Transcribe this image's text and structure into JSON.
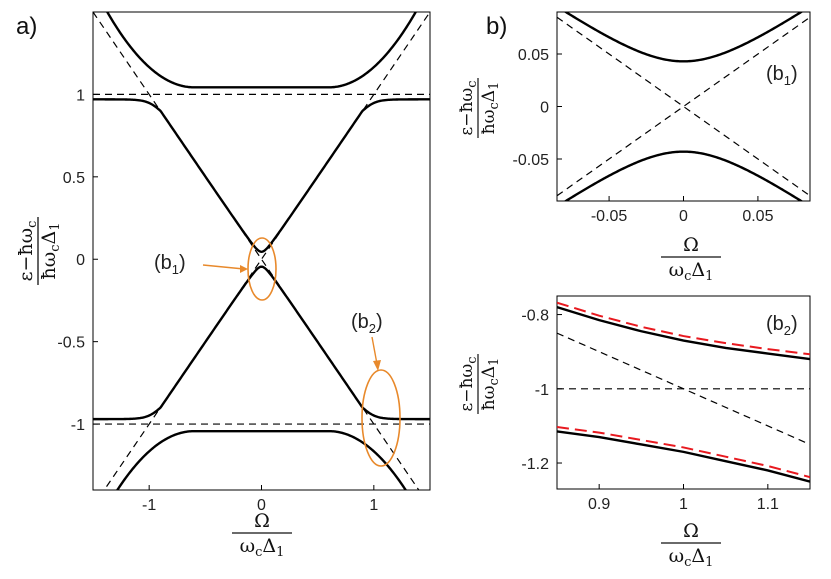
{
  "panel_labels": {
    "a": "a)",
    "b": "b)"
  },
  "axis_labels": {
    "a_y_num": "ε−ħω",
    "a_y_num_sub": "c",
    "a_y_den": "ħω",
    "a_y_den_sub1": "c",
    "a_y_den_mid": "Δ",
    "a_y_den_sub2": "1",
    "a_x_num": "Ω",
    "a_x_den": "ω",
    "a_x_den_sub1": "c",
    "a_x_den_mid": "Δ",
    "a_x_den_sub2": "1",
    "b1_y_num": "ε−ħω",
    "b1_y_num_sub": "c",
    "b1_y_den": "ħω",
    "b1_y_den_sub1": "c",
    "b1_y_den_mid": "Δ",
    "b1_y_den_sub2": "1",
    "b1_x_num": "Ω",
    "b1_x_den": "ω",
    "b1_x_den_sub1": "c",
    "b1_x_den_mid": "Δ",
    "b1_x_den_sub2": "1",
    "b2_y_num": "ε−ħω",
    "b2_y_num_sub": "c",
    "b2_y_den": "ħω",
    "b2_y_den_sub1": "c",
    "b2_y_den_mid": "Δ",
    "b2_y_den_sub2": "1",
    "b2_x_num": "Ω",
    "b2_x_den": "ω",
    "b2_x_den_sub1": "c",
    "b2_x_den_mid": "Δ",
    "b2_x_den_sub2": "1"
  },
  "annotations": {
    "b1_callout": "(b",
    "b1_callout_sub": "1",
    "b1_callout_close": ")",
    "b2_callout": "(b",
    "b2_callout_sub": "2",
    "b2_callout_close": ")",
    "b1_tag": "(b",
    "b1_tag_sub": "1",
    "b1_tag_close": ")",
    "b2_tag": "(b",
    "b2_tag_sub": "2",
    "b2_tag_close": ")",
    "highlight_color": "#e8892b"
  },
  "chart_data": [
    {
      "id": "a",
      "type": "line",
      "xlim": [
        -1.5,
        1.5
      ],
      "ylim": [
        -1.4,
        1.5
      ],
      "xticks": [
        -1,
        0,
        1
      ],
      "xtick_labels": [
        "-1",
        "0",
        "1"
      ],
      "yticks": [
        1,
        0.5,
        0,
        -0.5,
        -1
      ],
      "ytick_labels": [
        "1",
        "0.5",
        "0",
        "-0.5",
        "-1"
      ],
      "model": {
        "coupling": 0.045,
        "gap": 1,
        "dispersion_slope": 1.0
      },
      "series": [
        {
          "style": "solid",
          "color": "#000000",
          "x": [
            -1.5,
            -1.2,
            -0.8,
            -0.4,
            0,
            0.4,
            0.8,
            1.2,
            1.5
          ],
          "y": [
            1.48,
            1.21,
            1.07,
            1.045,
            1.043,
            1.045,
            1.07,
            1.21,
            1.48
          ]
        },
        {
          "style": "solid",
          "color": "#000000",
          "x": [
            -1.5,
            -1.2,
            -0.9,
            -0.6,
            -0.3,
            0,
            0.3,
            0.6,
            0.9,
            1.2,
            1.5
          ],
          "y": [
            0.97,
            0.95,
            0.84,
            0.58,
            0.3,
            0.04,
            0.3,
            0.58,
            0.84,
            0.95,
            0.97
          ]
        },
        {
          "style": "solid",
          "color": "#000000",
          "x": [
            -1.5,
            -1.2,
            -0.9,
            -0.6,
            -0.3,
            0,
            0.3,
            0.6,
            0.9,
            1.2,
            1.5
          ],
          "y": [
            -0.97,
            -0.95,
            -0.84,
            -0.58,
            -0.3,
            -0.04,
            -0.3,
            -0.58,
            -0.84,
            -0.95,
            -0.97
          ]
        },
        {
          "style": "solid",
          "color": "#000000",
          "x": [
            -1.5,
            -1.2,
            -0.8,
            -0.4,
            0,
            0.4,
            0.8,
            1.2,
            1.5
          ],
          "y": [
            -1.48,
            -1.21,
            -1.07,
            -1.045,
            -1.043,
            -1.045,
            -1.07,
            -1.21,
            -1.48
          ]
        },
        {
          "style": "dashed",
          "color": "#000000",
          "x": [
            -1.5,
            1.5
          ],
          "y": [
            1,
            1
          ]
        },
        {
          "style": "dashed",
          "color": "#000000",
          "x": [
            -1.5,
            1.5
          ],
          "y": [
            -1,
            -1
          ]
        },
        {
          "style": "dashed",
          "color": "#000000",
          "x": [
            -1.5,
            1.5
          ],
          "y": [
            1.5,
            -1.5
          ]
        },
        {
          "style": "dashed",
          "color": "#000000",
          "x": [
            -1.5,
            1.5
          ],
          "y": [
            -1.5,
            1.5
          ]
        }
      ]
    },
    {
      "id": "b1",
      "type": "line",
      "xlim": [
        -0.085,
        0.085
      ],
      "ylim": [
        -0.09,
        0.09
      ],
      "xticks": [
        -0.05,
        0,
        0.05
      ],
      "xtick_labels": [
        "-0.05",
        "0",
        "0.05"
      ],
      "yticks": [
        0.05,
        0,
        -0.05
      ],
      "ytick_labels": [
        "0.05",
        "0",
        "-0.05"
      ],
      "model": {
        "coupling": 0.043
      },
      "series": [
        {
          "style": "solid",
          "color": "#000000",
          "x": [
            -0.085,
            -0.05,
            -0.025,
            0,
            0.025,
            0.05,
            0.085
          ],
          "y": [
            0.095,
            0.066,
            0.05,
            0.043,
            0.05,
            0.066,
            0.095
          ]
        },
        {
          "style": "solid",
          "color": "#000000",
          "x": [
            -0.085,
            -0.05,
            -0.025,
            0,
            0.025,
            0.05,
            0.085
          ],
          "y": [
            -0.095,
            -0.066,
            -0.05,
            -0.043,
            -0.05,
            -0.066,
            -0.095
          ]
        },
        {
          "style": "dashed",
          "color": "#000000",
          "x": [
            -0.085,
            0.085
          ],
          "y": [
            0.085,
            -0.085
          ]
        },
        {
          "style": "dashed",
          "color": "#000000",
          "x": [
            -0.085,
            0.085
          ],
          "y": [
            -0.085,
            0.085
          ]
        }
      ]
    },
    {
      "id": "b2",
      "type": "line",
      "xlim": [
        0.85,
        1.15
      ],
      "ylim": [
        -1.27,
        -0.75
      ],
      "xticks": [
        0.9,
        1,
        1.1
      ],
      "xtick_labels": [
        "0.9",
        "1",
        "1.1"
      ],
      "yticks": [
        -0.8,
        -1,
        -1.2
      ],
      "ytick_labels": [
        "-0.8",
        "-1",
        "-1.2"
      ],
      "series": [
        {
          "style": "solid",
          "color": "#000000",
          "x": [
            0.85,
            0.9,
            0.95,
            1.0,
            1.05,
            1.1,
            1.15
          ],
          "y": [
            -0.78,
            -0.815,
            -0.845,
            -0.87,
            -0.89,
            -0.905,
            -0.92
          ]
        },
        {
          "style": "solid",
          "color": "#000000",
          "x": [
            0.85,
            0.9,
            0.95,
            1.0,
            1.05,
            1.1,
            1.15
          ],
          "y": [
            -1.115,
            -1.13,
            -1.15,
            -1.17,
            -1.195,
            -1.22,
            -1.25
          ]
        },
        {
          "style": "dashed-red",
          "color": "#e8191f",
          "x": [
            0.85,
            0.9,
            0.95,
            1.0,
            1.05,
            1.1,
            1.15
          ],
          "y": [
            -0.768,
            -0.803,
            -0.833,
            -0.858,
            -0.877,
            -0.893,
            -0.907
          ]
        },
        {
          "style": "dashed-red",
          "color": "#e8191f",
          "x": [
            0.85,
            0.9,
            0.95,
            1.0,
            1.05,
            1.1,
            1.15
          ],
          "y": [
            -1.103,
            -1.118,
            -1.138,
            -1.158,
            -1.183,
            -1.208,
            -1.238
          ]
        },
        {
          "style": "dashed",
          "color": "#000000",
          "x": [
            0.85,
            1.15
          ],
          "y": [
            -0.85,
            -1.15
          ]
        },
        {
          "style": "dashed",
          "color": "#000000",
          "x": [
            0.85,
            1.15
          ],
          "y": [
            -1,
            -1
          ]
        }
      ]
    }
  ]
}
